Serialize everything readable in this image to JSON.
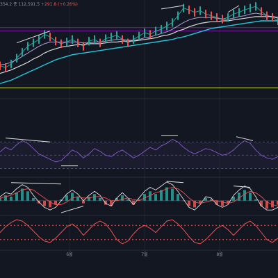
{
  "header": {
    "ohlc_text": "354.2",
    "close_text": "종 112,591.5",
    "change_text": "+291.8 (+0.26%)"
  },
  "colors": {
    "background": "#131722",
    "ema_cyan": "#26c6da",
    "ema_white": "#d8d8d8",
    "ema_purple": "#b39ddb",
    "rsi": "#7e57c2",
    "level_purple": "#7b1fa2",
    "level_yellow": "#cddc39",
    "up": "#26a69a",
    "down": "#ef5350",
    "divergence": "#e0e0e0"
  },
  "chart_data": [
    {
      "type": "line",
      "panel": "price",
      "x_tick_labels": [
        "6월",
        "7월",
        "8월"
      ],
      "x": [
        0,
        2,
        4,
        6,
        8,
        10,
        12,
        14,
        16,
        18,
        20,
        22,
        24,
        26,
        28,
        30,
        32,
        34,
        36,
        38,
        40,
        42,
        44,
        46,
        48,
        50,
        52,
        54,
        56,
        58,
        60,
        62,
        64,
        66,
        68,
        70,
        72,
        74,
        76,
        78,
        80,
        82,
        84,
        86,
        88,
        90,
        92,
        94,
        96,
        98,
        100
      ],
      "series": [
        {
          "values": [
            0.29,
            0.27,
            0.31,
            0.38,
            0.45,
            0.52,
            0.56,
            0.6,
            0.66,
            0.63,
            0.58,
            0.55,
            0.57,
            0.6,
            0.56,
            0.52,
            0.58,
            0.6,
            0.56,
            0.61,
            0.63,
            0.65,
            0.6,
            0.56,
            0.6,
            0.64,
            0.68,
            0.66,
            0.7,
            0.72,
            0.76,
            0.8,
            0.88,
            0.97,
            0.95,
            0.92,
            0.94,
            0.9,
            0.88,
            0.86,
            0.84,
            0.86,
            0.9,
            0.92,
            0.95,
            0.97,
            0.99,
            0.93,
            0.88,
            0.86,
            0.82
          ]
        },
        {
          "values": [
            0.3,
            0.31,
            0.33,
            0.36,
            0.4,
            0.44,
            0.48,
            0.52,
            0.55,
            0.57,
            0.57,
            0.57,
            0.57,
            0.57,
            0.57,
            0.56,
            0.56,
            0.57,
            0.57,
            0.58,
            0.59,
            0.6,
            0.6,
            0.59,
            0.59,
            0.6,
            0.62,
            0.63,
            0.65,
            0.67,
            0.69,
            0.72,
            0.76,
            0.8,
            0.83,
            0.85,
            0.86,
            0.86,
            0.86,
            0.85,
            0.84,
            0.84,
            0.85,
            0.87,
            0.88,
            0.9,
            0.91,
            0.9,
            0.88,
            0.87,
            0.85
          ]
        },
        {
          "values": [
            0.2,
            0.22,
            0.24,
            0.27,
            0.3,
            0.33,
            0.37,
            0.4,
            0.44,
            0.47,
            0.49,
            0.51,
            0.52,
            0.53,
            0.54,
            0.54,
            0.55,
            0.55,
            0.55,
            0.56,
            0.57,
            0.57,
            0.58,
            0.58,
            0.58,
            0.59,
            0.6,
            0.61,
            0.62,
            0.64,
            0.65,
            0.67,
            0.7,
            0.72,
            0.75,
            0.77,
            0.79,
            0.8,
            0.81,
            0.81,
            0.82,
            0.82,
            0.83,
            0.84,
            0.85,
            0.86,
            0.87,
            0.87,
            0.87,
            0.87,
            0.86
          ]
        },
        {
          "values": [
            0.08,
            0.1,
            0.12,
            0.15,
            0.18,
            0.21,
            0.24,
            0.27,
            0.3,
            0.33,
            0.36,
            0.38,
            0.4,
            0.42,
            0.43,
            0.44,
            0.45,
            0.46,
            0.47,
            0.48,
            0.49,
            0.5,
            0.51,
            0.52,
            0.53,
            0.54,
            0.55,
            0.56,
            0.57,
            0.58,
            0.59,
            0.6,
            0.62,
            0.63,
            0.65,
            0.67,
            0.69,
            0.71,
            0.73,
            0.74,
            0.75,
            0.76,
            0.77,
            0.78,
            0.79,
            0.8,
            0.81,
            0.82,
            0.82,
            0.82,
            0.82
          ]
        }
      ],
      "levels": [
        0.74,
        0.7,
        0.03
      ],
      "divergence_lines": [
        [
          6,
          0.56,
          18,
          0.7
        ],
        [
          58,
          0.96,
          66,
          1.0
        ],
        [
          82,
          0.92,
          86,
          1.0
        ]
      ]
    },
    {
      "type": "line",
      "panel": "rsi",
      "x": [
        0,
        2,
        4,
        6,
        8,
        10,
        12,
        14,
        16,
        18,
        20,
        22,
        24,
        26,
        28,
        30,
        32,
        34,
        36,
        38,
        40,
        42,
        44,
        46,
        48,
        50,
        52,
        54,
        56,
        58,
        60,
        62,
        64,
        66,
        68,
        70,
        72,
        74,
        76,
        78,
        80,
        82,
        84,
        86,
        88,
        90,
        92,
        94,
        96,
        98,
        100
      ],
      "series": [
        {
          "values": [
            55,
            62,
            58,
            66,
            72,
            68,
            60,
            52,
            48,
            44,
            40,
            42,
            50,
            58,
            54,
            46,
            52,
            60,
            56,
            50,
            48,
            54,
            58,
            52,
            46,
            50,
            56,
            62,
            58,
            64,
            68,
            74,
            70,
            62,
            56,
            52,
            56,
            60,
            58,
            54,
            50,
            52,
            58,
            66,
            72,
            68,
            58,
            50,
            46,
            44,
            48
          ]
        }
      ],
      "levels": [
        70,
        50,
        30
      ],
      "divergence_lines": [
        [
          2,
          76,
          18,
          70
        ],
        [
          22,
          34,
          28,
          34
        ],
        [
          58,
          80,
          64,
          80
        ],
        [
          85,
          78,
          91,
          72
        ]
      ]
    },
    {
      "type": "bar",
      "panel": "macd",
      "x": [
        0,
        2,
        4,
        6,
        8,
        10,
        12,
        14,
        16,
        18,
        20,
        22,
        24,
        26,
        28,
        30,
        32,
        34,
        36,
        38,
        40,
        42,
        44,
        46,
        48,
        50,
        52,
        54,
        56,
        58,
        60,
        62,
        64,
        66,
        68,
        70,
        72,
        74,
        76,
        78,
        80,
        82,
        84,
        86,
        88,
        90,
        92,
        94,
        96,
        98,
        100
      ],
      "values": [
        0.2,
        0.4,
        0.3,
        0.6,
        0.9,
        0.7,
        0.2,
        -0.2,
        -0.4,
        -0.5,
        -0.3,
        0.1,
        0.4,
        0.6,
        0.3,
        -0.2,
        0.3,
        0.5,
        0.2,
        -0.3,
        -0.4,
        0.2,
        0.4,
        0.1,
        -0.3,
        0.1,
        0.5,
        0.7,
        0.5,
        0.8,
        1.0,
        0.9,
        0.5,
        0.0,
        -0.4,
        -0.5,
        -0.2,
        0.2,
        0.1,
        -0.3,
        -0.4,
        -0.2,
        0.3,
        0.6,
        0.8,
        0.6,
        0.1,
        -0.4,
        -0.6,
        -0.5,
        -0.3
      ],
      "series": [
        {
          "values": [
            0.3,
            0.6,
            0.5,
            0.9,
            1.2,
            1.0,
            0.4,
            -0.1,
            -0.5,
            -0.7,
            -0.5,
            0.0,
            0.5,
            0.8,
            0.5,
            0.0,
            0.4,
            0.7,
            0.4,
            -0.2,
            -0.4,
            0.2,
            0.6,
            0.2,
            -0.3,
            0.2,
            0.7,
            1.0,
            0.8,
            1.1,
            1.4,
            1.2,
            0.7,
            0.1,
            -0.5,
            -0.7,
            -0.3,
            0.3,
            0.2,
            -0.3,
            -0.5,
            -0.3,
            0.4,
            0.8,
            1.1,
            0.9,
            0.3,
            -0.4,
            -0.7,
            -0.7,
            -0.5
          ]
        },
        {
          "values": [
            0.2,
            0.3,
            0.4,
            0.6,
            0.8,
            0.9,
            0.8,
            0.5,
            0.2,
            -0.1,
            -0.3,
            -0.3,
            -0.1,
            0.2,
            0.3,
            0.2,
            0.2,
            0.3,
            0.3,
            0.2,
            0.0,
            0.0,
            0.1,
            0.2,
            0.1,
            0.0,
            0.2,
            0.4,
            0.6,
            0.7,
            0.9,
            1.0,
            0.9,
            0.6,
            0.2,
            -0.1,
            -0.2,
            -0.1,
            0.0,
            0.0,
            -0.1,
            -0.2,
            -0.1,
            0.2,
            0.5,
            0.7,
            0.6,
            0.3,
            -0.1,
            -0.3,
            -0.4
          ]
        }
      ],
      "divergence_lines": [
        [
          4,
          1.35,
          22,
          1.25
        ],
        [
          22,
          -0.9,
          30,
          -0.4
        ],
        [
          60,
          1.45,
          66,
          1.35
        ],
        [
          84,
          1.1,
          90,
          1.0
        ]
      ]
    },
    {
      "type": "line",
      "panel": "oscillator",
      "x": [
        0,
        2,
        4,
        6,
        8,
        10,
        12,
        14,
        16,
        18,
        20,
        22,
        24,
        26,
        28,
        30,
        32,
        34,
        36,
        38,
        40,
        42,
        44,
        46,
        48,
        50,
        52,
        54,
        56,
        58,
        60,
        62,
        64,
        66,
        68,
        70,
        72,
        74,
        76,
        78,
        80,
        82,
        84,
        86,
        88,
        90,
        92,
        94,
        96,
        98,
        100
      ],
      "series": [
        {
          "values": [
            0.0,
            0.4,
            0.7,
            0.9,
            0.8,
            0.5,
            0.1,
            -0.3,
            -0.6,
            -0.7,
            -0.4,
            0.0,
            0.4,
            0.6,
            0.3,
            -0.2,
            0.2,
            0.6,
            0.8,
            0.6,
            0.1,
            -0.5,
            -0.8,
            -0.6,
            -0.1,
            0.3,
            0.5,
            0.3,
            0.0,
            0.4,
            0.8,
            0.9,
            0.6,
            0.2,
            -0.3,
            -0.7,
            -0.8,
            -0.5,
            -0.1,
            0.3,
            0.5,
            0.2,
            -0.2,
            0.2,
            0.6,
            0.8,
            0.5,
            0.0,
            -0.5,
            -0.7,
            -0.4
          ]
        }
      ],
      "levels": [
        0.5,
        -0.5
      ]
    }
  ]
}
